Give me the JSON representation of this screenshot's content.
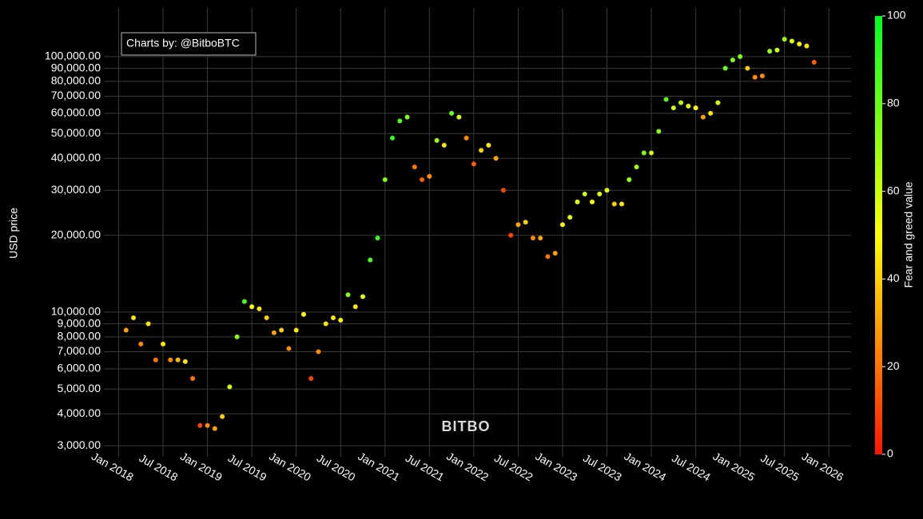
{
  "chart_data": {
    "type": "scatter",
    "y_label": "USD price",
    "annotation": "Charts by: @BitboBTC",
    "watermark": "BITBO",
    "log_y": true,
    "grid": true,
    "xlim": [
      "2017-11",
      "2026-04"
    ],
    "ylim": [
      2717,
      155000
    ],
    "xticks": [
      {
        "value": "2018-01",
        "label": "Jan 2018"
      },
      {
        "value": "2018-07",
        "label": "Jul 2018"
      },
      {
        "value": "2019-01",
        "label": "Jan 2019"
      },
      {
        "value": "2019-07",
        "label": "Jul 2019"
      },
      {
        "value": "2020-01",
        "label": "Jan 2020"
      },
      {
        "value": "2020-07",
        "label": "Jul 2020"
      },
      {
        "value": "2021-01",
        "label": "Jan 2021"
      },
      {
        "value": "2021-07",
        "label": "Jul 2021"
      },
      {
        "value": "2022-01",
        "label": "Jan 2022"
      },
      {
        "value": "2022-07",
        "label": "Jul 2022"
      },
      {
        "value": "2023-01",
        "label": "Jan 2023"
      },
      {
        "value": "2023-07",
        "label": "Jul 2023"
      },
      {
        "value": "2024-01",
        "label": "Jan 2024"
      },
      {
        "value": "2024-07",
        "label": "Jul 2024"
      },
      {
        "value": "2025-01",
        "label": "Jan 2025"
      },
      {
        "value": "2025-07",
        "label": "Jul 2025"
      },
      {
        "value": "2026-01",
        "label": "Jan 2026"
      }
    ],
    "yticks": [
      {
        "value": 3000,
        "label": "3,000.00"
      },
      {
        "value": 4000,
        "label": "4,000.00"
      },
      {
        "value": 5000,
        "label": "5,000.00"
      },
      {
        "value": 6000,
        "label": "6,000.00"
      },
      {
        "value": 7000,
        "label": "7,000.00"
      },
      {
        "value": 8000,
        "label": "8,000.00"
      },
      {
        "value": 9000,
        "label": "9,000.00"
      },
      {
        "value": 10000,
        "label": "10,000.00"
      },
      {
        "value": 20000,
        "label": "20,000.00"
      },
      {
        "value": 30000,
        "label": "30,000.00"
      },
      {
        "value": 40000,
        "label": "40,000.00"
      },
      {
        "value": 50000,
        "label": "50,000.00"
      },
      {
        "value": 60000,
        "label": "60,000.00"
      },
      {
        "value": 70000,
        "label": "70,000.00"
      },
      {
        "value": 80000,
        "label": "80,000.00"
      },
      {
        "value": 90000,
        "label": "90,000.00"
      },
      {
        "value": 100000,
        "label": "100,000.00"
      }
    ],
    "colorbar": {
      "title": "Fear and greed value",
      "lim": [
        0,
        100
      ],
      "ticks": [
        0,
        20,
        40,
        60,
        80,
        100
      ],
      "colorscale": [
        "#ff1500",
        "#ffff00",
        "#00ff22"
      ]
    },
    "x": [
      "2018-02",
      "2018-03",
      "2018-04",
      "2018-05",
      "2018-06",
      "2018-07",
      "2018-08",
      "2018-09",
      "2018-10",
      "2018-11",
      "2018-12",
      "2019-01",
      "2019-02",
      "2019-03",
      "2019-04",
      "2019-05",
      "2019-06",
      "2019-07",
      "2019-08",
      "2019-09",
      "2019-10",
      "2019-11",
      "2019-12",
      "2020-01",
      "2020-02",
      "2020-03",
      "2020-04",
      "2020-05",
      "2020-06",
      "2020-07",
      "2020-08",
      "2020-09",
      "2020-10",
      "2020-11",
      "2020-12",
      "2021-01",
      "2021-02",
      "2021-03",
      "2021-04",
      "2021-05",
      "2021-06",
      "2021-07",
      "2021-08",
      "2021-09",
      "2021-10",
      "2021-11",
      "2021-12",
      "2022-01",
      "2022-02",
      "2022-03",
      "2022-04",
      "2022-05",
      "2022-06",
      "2022-07",
      "2022-08",
      "2022-09",
      "2022-10",
      "2022-11",
      "2022-12",
      "2023-01",
      "2023-02",
      "2023-03",
      "2023-04",
      "2023-05",
      "2023-06",
      "2023-07",
      "2023-08",
      "2023-09",
      "2023-10",
      "2023-11",
      "2023-12",
      "2024-01",
      "2024-02",
      "2024-03",
      "2024-04",
      "2024-05",
      "2024-06",
      "2024-07",
      "2024-08",
      "2024-09",
      "2024-10",
      "2024-11",
      "2024-12",
      "2025-01",
      "2025-02",
      "2025-03",
      "2025-04",
      "2025-05",
      "2025-06",
      "2025-07",
      "2025-08",
      "2025-09",
      "2025-10",
      "2025-11"
    ],
    "values": [
      8500,
      9500,
      7500,
      9000,
      6500,
      7500,
      6500,
      6500,
      6400,
      5500,
      3600,
      3600,
      3500,
      3900,
      5100,
      8000,
      11000,
      10500,
      10300,
      9500,
      8300,
      8500,
      7200,
      8500,
      9800,
      5500,
      7000,
      9000,
      9500,
      9300,
      11700,
      10500,
      11500,
      16000,
      19500,
      33000,
      48000,
      56000,
      58000,
      37000,
      33000,
      34000,
      47000,
      45000,
      60000,
      58000,
      48000,
      38000,
      43000,
      45000,
      40000,
      30000,
      20000,
      22000,
      22500,
      19500,
      19500,
      16500,
      17000,
      22000,
      23500,
      27000,
      29000,
      27000,
      29000,
      30000,
      26500,
      26500,
      33000,
      37000,
      42000,
      42000,
      51000,
      68000,
      63000,
      66000,
      64000,
      63000,
      58000,
      60000,
      66000,
      90000,
      97000,
      100000,
      90000,
      83000,
      84000,
      105000,
      106000,
      117000,
      115000,
      112000,
      110000,
      95000
    ],
    "color_values": [
      30,
      45,
      25,
      45,
      20,
      45,
      25,
      35,
      45,
      20,
      10,
      25,
      30,
      40,
      60,
      75,
      85,
      50,
      45,
      40,
      30,
      40,
      25,
      45,
      50,
      10,
      25,
      45,
      45,
      50,
      75,
      45,
      55,
      85,
      90,
      75,
      90,
      85,
      75,
      20,
      15,
      25,
      70,
      45,
      80,
      60,
      25,
      15,
      40,
      45,
      30,
      10,
      10,
      30,
      40,
      25,
      30,
      20,
      30,
      50,
      55,
      55,
      60,
      50,
      55,
      55,
      40,
      45,
      70,
      70,
      75,
      60,
      75,
      85,
      60,
      65,
      55,
      50,
      30,
      45,
      60,
      80,
      75,
      75,
      40,
      25,
      25,
      70,
      60,
      70,
      55,
      50,
      45,
      15
    ]
  }
}
